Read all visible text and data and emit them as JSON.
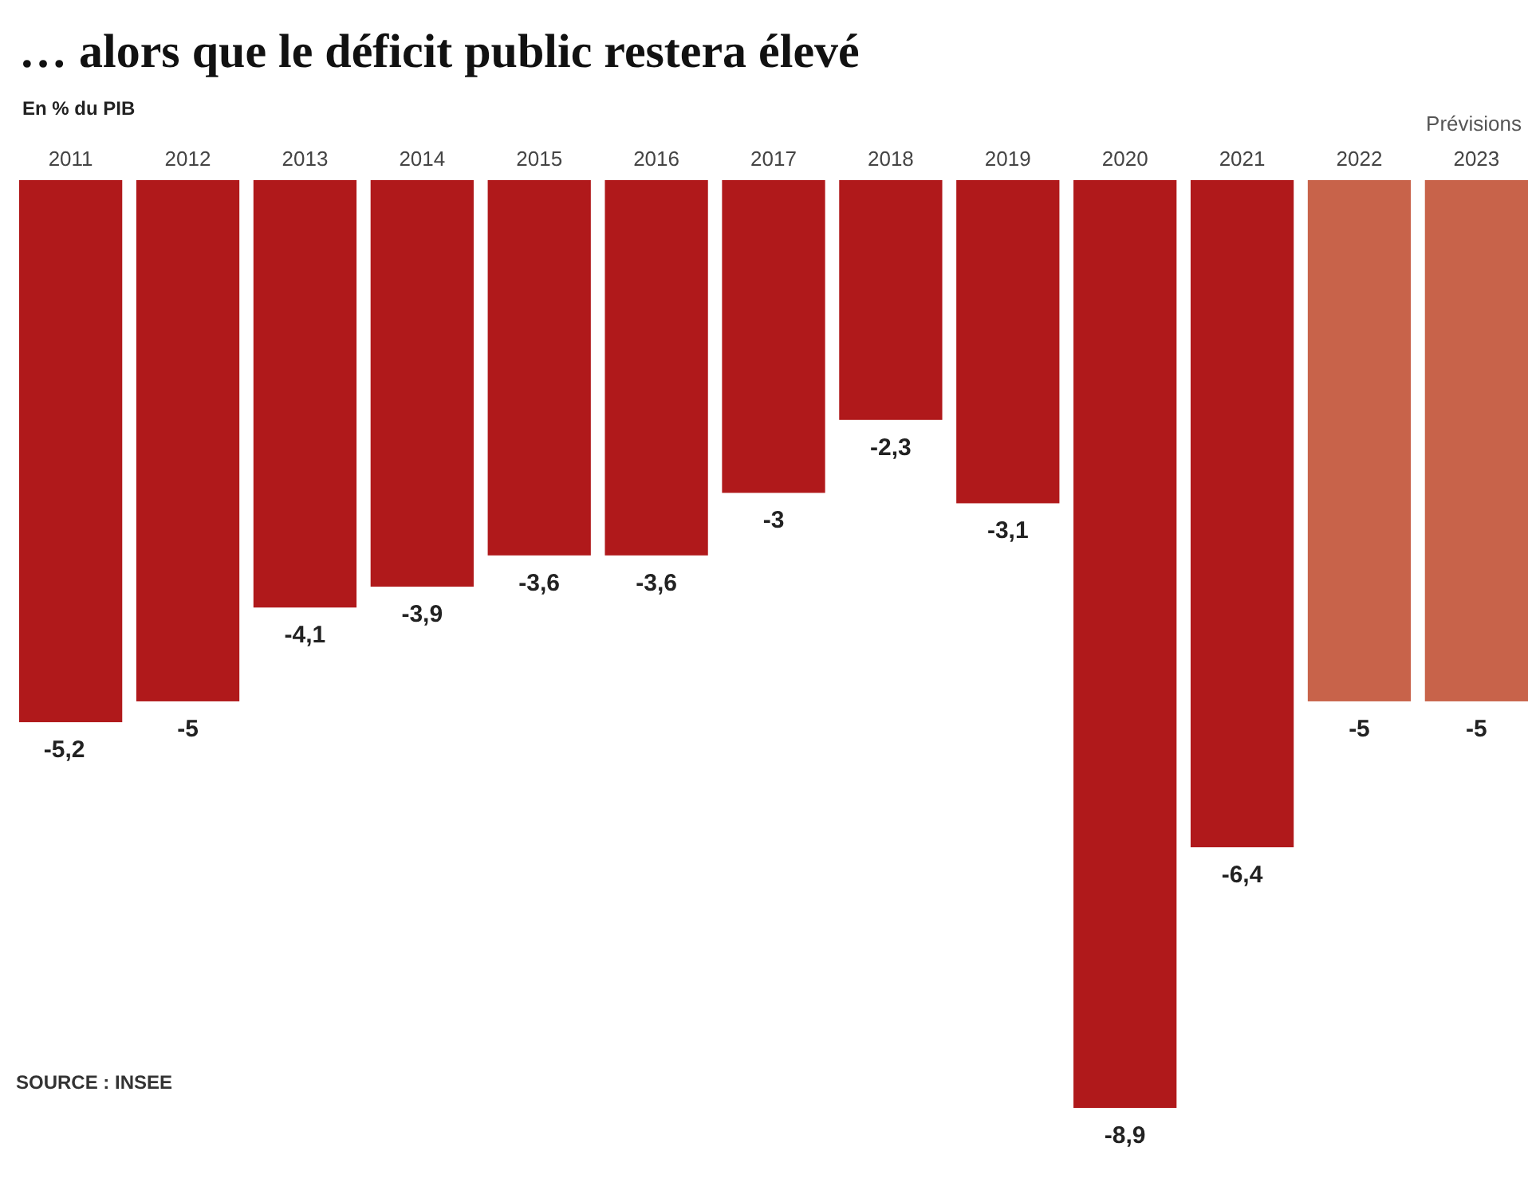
{
  "chart_data": {
    "type": "bar",
    "title": "… alors que le déficit public restera élevé",
    "subtitle": "En % du PIB",
    "categories": [
      "2011",
      "2012",
      "2013",
      "2014",
      "2015",
      "2016",
      "2017",
      "2018",
      "2019",
      "2020",
      "2021",
      "2022",
      "2023"
    ],
    "values": [
      -5.2,
      -5,
      -4.1,
      -3.9,
      -3.6,
      -3.6,
      -3,
      -2.3,
      -3.1,
      -8.9,
      -6.4,
      -5,
      -5
    ],
    "colors": [
      "#b0191b",
      "#b0191b",
      "#b0191b",
      "#b0191b",
      "#b0191b",
      "#b0191b",
      "#b0191b",
      "#b0191b",
      "#b0191b",
      "#b0191b",
      "#b0191b",
      "#c8634a",
      "#c8634a"
    ],
    "value_labels": [
      "-5,2",
      "-5",
      "-4,1",
      "-3,9",
      "-3,6",
      "-3,6",
      "-3",
      "-2,3",
      "-3,1",
      "-8,9",
      "-6,4",
      "-5",
      "-5"
    ],
    "annotations": [
      "Prévisions",
      "SOURCE : INSEE"
    ]
  }
}
